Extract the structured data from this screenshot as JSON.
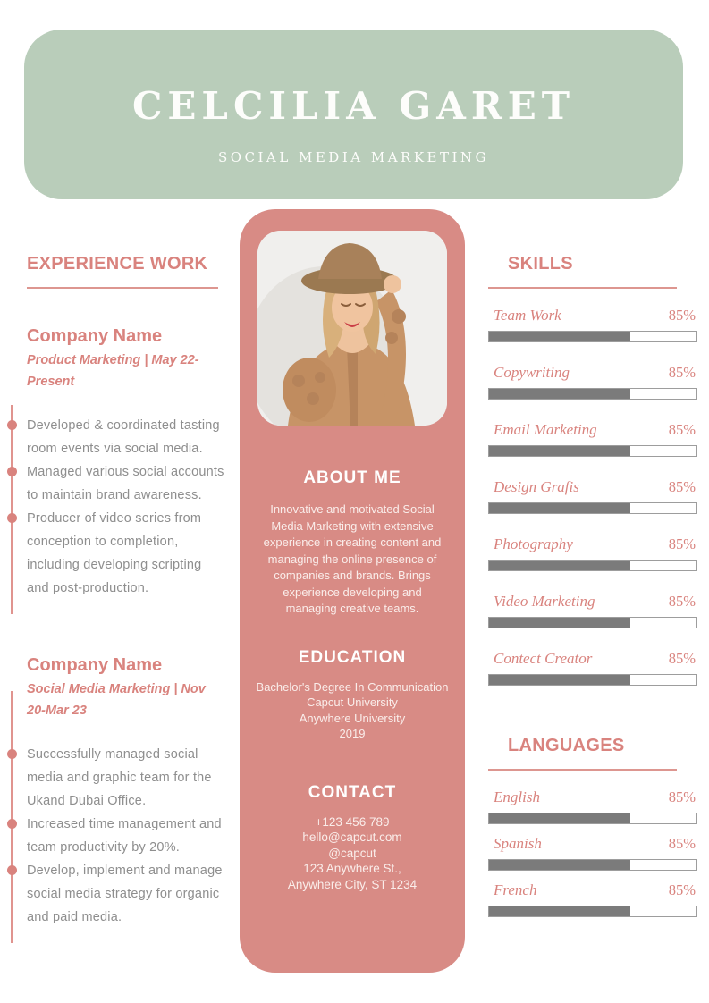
{
  "header": {
    "name": "CELCILIA GARET",
    "title": "SOCIAL MEDIA MARKETING",
    "bg_color": "#b9cdba"
  },
  "experience": {
    "heading": "EXPERIENCE WORK",
    "jobs": [
      {
        "company": "Company Name",
        "meta": "Product Marketing | May 22-Present",
        "bullets": [
          "Developed & coordinated tasting room events via social media.",
          "Managed various social accounts to maintain brand awareness.",
          "Producer of video series from conception to completion, including developing scripting and post-production."
        ]
      },
      {
        "company": "Company Name",
        "meta": "Social Media Marketing | Nov 20-Mar 23",
        "bullets": [
          "Successfully managed social media and graphic team for the Ukand Dubai Office.",
          "Increased time management and team productivity by 20%.",
          "Develop, implement and manage social media strategy for organic and paid media."
        ]
      }
    ]
  },
  "profile": {
    "panel_color": "#d88b85",
    "photo": "portrait-of-woman-in-hat-and-knit-cardigan",
    "about": {
      "heading": "ABOUT ME",
      "text": "Innovative and motivated Social Media Marketing with extensive experience in creating content and managing the online presence of companies and brands. Brings experience developing and managing creative teams."
    },
    "education": {
      "heading": "EDUCATION",
      "lines": [
        "Bachelor's Degree In Communication",
        "Capcut University",
        "Anywhere University",
        "2019"
      ]
    },
    "contact": {
      "heading": "CONTACT",
      "lines": [
        "+123  456 789",
        "hello@capcut.com",
        "@capcut",
        "123 Anywhere St.,",
        "Anywhere City, ST 1234"
      ]
    }
  },
  "skills": {
    "heading": "SKILLS",
    "items": [
      {
        "label": "Team Work",
        "percent": "85%",
        "value": 85,
        "fill_percent": 68
      },
      {
        "label": "Copywriting",
        "percent": "85%",
        "value": 85,
        "fill_percent": 68
      },
      {
        "label": "Email Marketing",
        "percent": "85%",
        "value": 85,
        "fill_percent": 68
      },
      {
        "label": "Design Grafis",
        "percent": "85%",
        "value": 85,
        "fill_percent": 68
      },
      {
        "label": "Photography",
        "percent": "85%",
        "value": 85,
        "fill_percent": 68
      },
      {
        "label": "Video Marketing",
        "percent": "85%",
        "value": 85,
        "fill_percent": 68
      },
      {
        "label": "Contect Creator",
        "percent": "85%",
        "value": 85,
        "fill_percent": 68
      }
    ]
  },
  "languages": {
    "heading": "LANGUAGES",
    "items": [
      {
        "label": "English",
        "percent": "85%",
        "value": 85,
        "fill_percent": 68
      },
      {
        "label": "Spanish",
        "percent": "85%",
        "value": 85,
        "fill_percent": 68
      },
      {
        "label": "French",
        "percent": "85%",
        "value": 85,
        "fill_percent": 68
      }
    ]
  },
  "colors": {
    "accent_pink": "#d9837e",
    "panel_pink": "#d88b85",
    "header_green": "#b9cdba",
    "bar_fill_gray": "#7b7b7b",
    "bar_border_gray": "#9d9d9d",
    "body_text_gray": "#8e8e8e"
  }
}
